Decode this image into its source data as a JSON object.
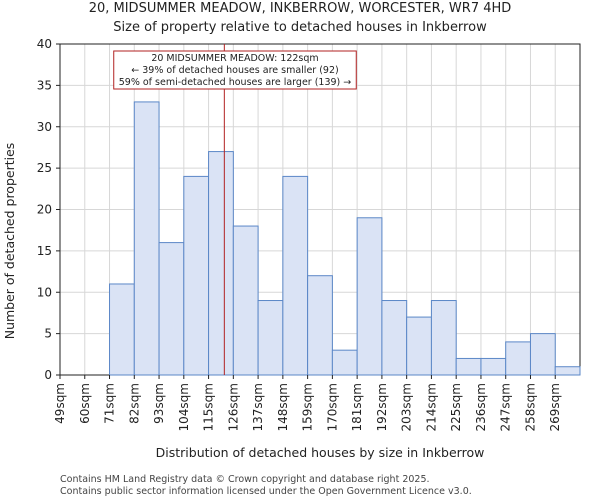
{
  "chart_data": {
    "type": "bar",
    "title": "20, MIDSUMMER MEADOW, INKBERROW, WORCESTER, WR7 4HD",
    "subtitle": "Size of property relative to detached houses in Inkberrow",
    "xlabel": "Distribution of detached houses by size in Inkberrow",
    "ylabel": "Number of detached properties",
    "categories": [
      "49sqm",
      "60sqm",
      "71sqm",
      "82sqm",
      "93sqm",
      "104sqm",
      "115sqm",
      "126sqm",
      "137sqm",
      "148sqm",
      "159sqm",
      "170sqm",
      "181sqm",
      "192sqm",
      "203sqm",
      "214sqm",
      "225sqm",
      "236sqm",
      "247sqm",
      "258sqm",
      "269sqm"
    ],
    "values": [
      0,
      0,
      11,
      33,
      16,
      24,
      27,
      18,
      9,
      24,
      12,
      3,
      19,
      9,
      7,
      9,
      2,
      2,
      4,
      5,
      1
    ],
    "ylim": [
      0,
      40
    ],
    "yticks": [
      0,
      5,
      10,
      15,
      20,
      25,
      30,
      35,
      40
    ],
    "grid": true,
    "bar_color": "#dae3f5",
    "bar_edge_color": "#5b87c7",
    "marker": {
      "value": 122,
      "color": "#b22222",
      "annotation": [
        "20 MIDSUMMER MEADOW: 122sqm",
        "← 39% of detached houses are smaller (92)",
        "59% of semi-detached houses are larger (139) →"
      ]
    }
  },
  "footer": {
    "line1": "Contains HM Land Registry data © Crown copyright and database right 2025.",
    "line2": "Contains public sector information licensed under the Open Government Licence v3.0."
  }
}
